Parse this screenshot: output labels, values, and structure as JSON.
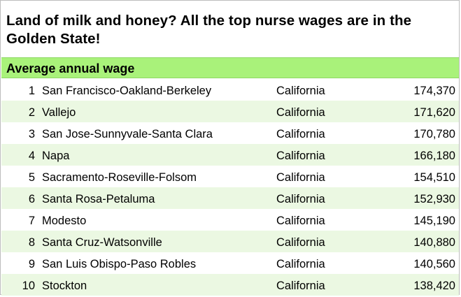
{
  "title": "Land of milk and honey? All the top nurse wages are in the Golden State!",
  "subheader": "Average annual wage",
  "chart_data": {
    "type": "table",
    "title": "Land of milk and honey? All the top nurse wages are in the Golden State!",
    "columns": [
      "",
      "",
      "",
      ""
    ],
    "header_band": "Average annual wage",
    "rows": [
      {
        "rank": "1",
        "area": "San Francisco-Oakland-Berkeley",
        "state": "California",
        "wage": "174,370"
      },
      {
        "rank": "2",
        "area": "Vallejo",
        "state": "California",
        "wage": "171,620"
      },
      {
        "rank": "3",
        "area": "San Jose-Sunnyvale-Santa Clara",
        "state": "California",
        "wage": "170,780"
      },
      {
        "rank": "4",
        "area": "Napa",
        "state": "California",
        "wage": "166,180"
      },
      {
        "rank": "5",
        "area": "Sacramento-Roseville-Folsom",
        "state": "California",
        "wage": "154,510"
      },
      {
        "rank": "6",
        "area": "Santa Rosa-Petaluma",
        "state": "California",
        "wage": "152,930"
      },
      {
        "rank": "7",
        "area": "Modesto",
        "state": "California",
        "wage": "145,190"
      },
      {
        "rank": "8",
        "area": "Santa Cruz-Watsonville",
        "state": "California",
        "wage": "140,880"
      },
      {
        "rank": "9",
        "area": "San Luis Obispo-Paso Robles",
        "state": "California",
        "wage": "140,560"
      },
      {
        "rank": "10",
        "area": "Stockton",
        "state": "California",
        "wage": "138,420"
      }
    ]
  },
  "colors": {
    "header_band": "#a9f27a",
    "alt_row": "#ebf8e2"
  }
}
